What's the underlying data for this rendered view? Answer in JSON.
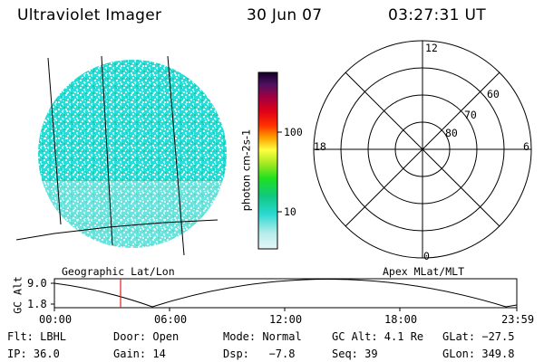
{
  "header": {
    "instrument": "Ultraviolet Imager",
    "date": "30 Jun 07",
    "time": "03:27:31 UT"
  },
  "colorbar": {
    "unit_label": "photon cm-2s-1",
    "ticks": [
      "100",
      "10"
    ]
  },
  "polar_plot": {
    "mlt_labels": {
      "top": "12",
      "left": "18",
      "right": "6",
      "bottom": "0"
    },
    "mlat_labels": [
      "60",
      "70",
      "80"
    ]
  },
  "captions": {
    "left": "Geographic Lat/Lon",
    "right": "Apex MLat/MLT"
  },
  "orbit_plot": {
    "ylabel": "GC Alt",
    "y_ticks": [
      "9.0",
      "1.8"
    ],
    "x_ticks": [
      "00:00",
      "06:00",
      "12:00",
      "18:00",
      "23:59"
    ]
  },
  "footer": {
    "row1": [
      "Flt: LBHL",
      "Door: Open",
      "Mode: Normal",
      "GC Alt: 4.1 Re",
      "GLat: −27.5"
    ],
    "row2": [
      "IP: 36.0",
      "Gain: 14",
      "Dsp:   −7.8",
      "Seq: 39",
      "GLon: 349.8"
    ]
  },
  "colors": {
    "disk_cyan": "#22e0dc",
    "disk_light": "#d8f0ee",
    "marker_red": "#e02020"
  }
}
